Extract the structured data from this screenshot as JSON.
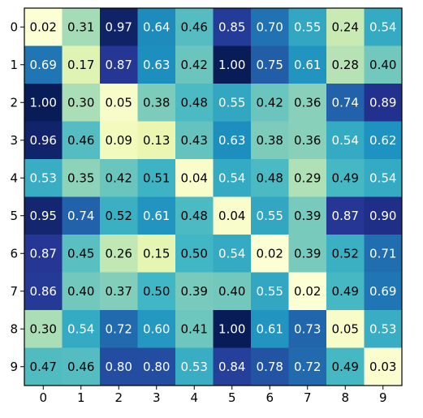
{
  "chart_data": {
    "type": "heatmap",
    "title": "",
    "xlabel": "",
    "ylabel": "",
    "x_categories": [
      "0",
      "1",
      "2",
      "3",
      "4",
      "5",
      "6",
      "7",
      "8",
      "9"
    ],
    "y_categories": [
      "0",
      "1",
      "2",
      "3",
      "4",
      "5",
      "6",
      "7",
      "8",
      "9"
    ],
    "colormap": "YlGnBu",
    "value_range": [
      0,
      1
    ],
    "grid": false,
    "values": [
      [
        0.02,
        0.31,
        0.97,
        0.64,
        0.46,
        0.85,
        0.7,
        0.55,
        0.24,
        0.54
      ],
      [
        0.69,
        0.17,
        0.87,
        0.63,
        0.42,
        1.0,
        0.75,
        0.61,
        0.28,
        0.4
      ],
      [
        1.0,
        0.3,
        0.05,
        0.38,
        0.48,
        0.55,
        0.42,
        0.36,
        0.74,
        0.89
      ],
      [
        0.96,
        0.46,
        0.09,
        0.13,
        0.43,
        0.63,
        0.38,
        0.36,
        0.54,
        0.62
      ],
      [
        0.53,
        0.35,
        0.42,
        0.51,
        0.04,
        0.54,
        0.48,
        0.29,
        0.49,
        0.54
      ],
      [
        0.95,
        0.74,
        0.52,
        0.61,
        0.48,
        0.04,
        0.55,
        0.39,
        0.87,
        0.9
      ],
      [
        0.87,
        0.45,
        0.26,
        0.15,
        0.5,
        0.54,
        0.02,
        0.39,
        0.52,
        0.71
      ],
      [
        0.86,
        0.4,
        0.37,
        0.5,
        0.39,
        0.4,
        0.55,
        0.02,
        0.49,
        0.69
      ],
      [
        0.3,
        0.54,
        0.72,
        0.6,
        0.41,
        1.0,
        0.61,
        0.73,
        0.05,
        0.53
      ],
      [
        0.47,
        0.46,
        0.8,
        0.8,
        0.53,
        0.84,
        0.78,
        0.72,
        0.49,
        0.03
      ]
    ]
  }
}
